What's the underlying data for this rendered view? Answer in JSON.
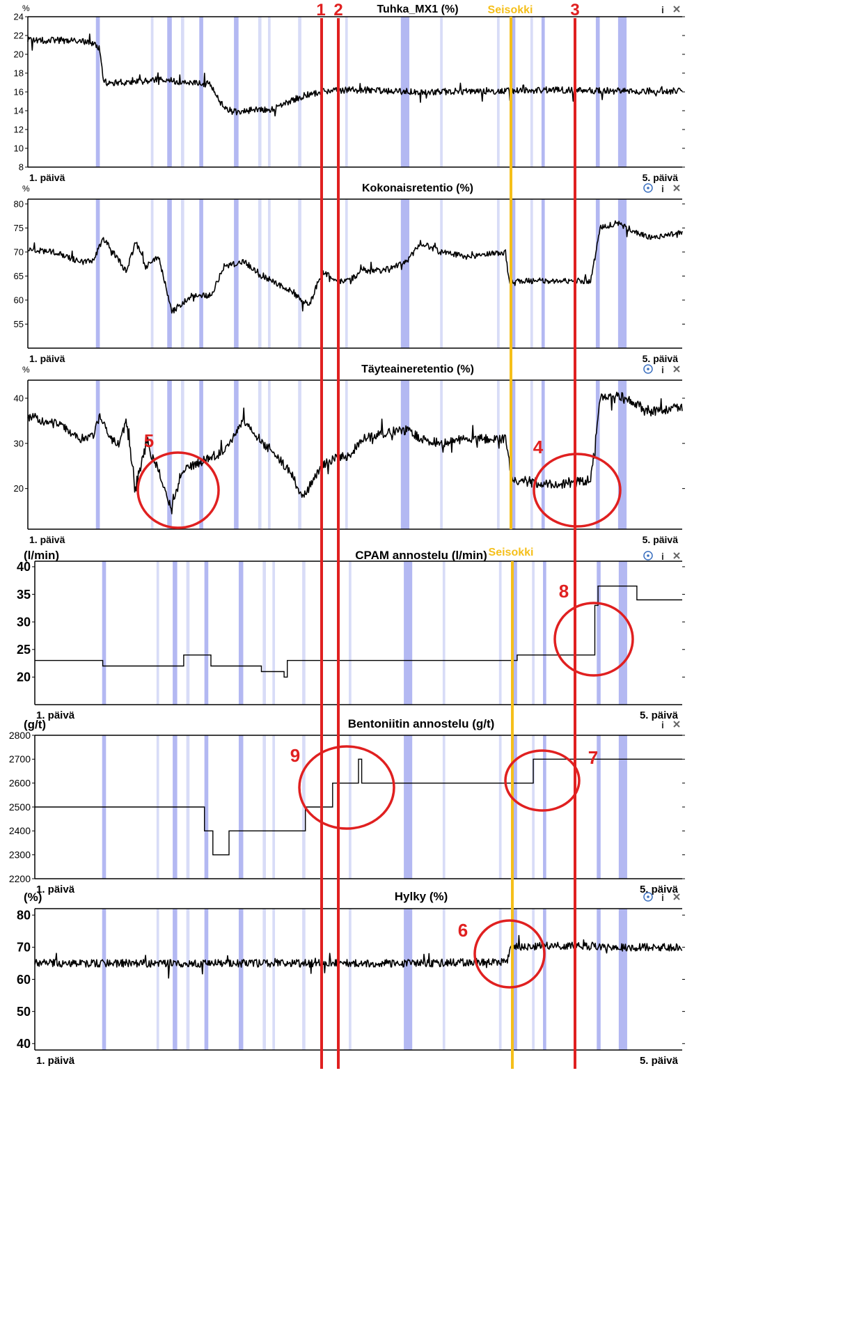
{
  "colors": {
    "band": "#b3b8f2",
    "band_light": "#d8dcf7",
    "trace": "#000000",
    "marker_red": "#e02020",
    "marker_yellow": "#f5bf1a",
    "control_blue": "#3a6fbf"
  },
  "markers": {
    "downtime_label": "Seisokki",
    "event_1": "1",
    "event_2": "2",
    "event_3": "3"
  },
  "chart_data": [
    {
      "type": "line",
      "title": "Tuhka_MX1 (%)",
      "unit_label": "%",
      "ylim": [
        8,
        24
      ],
      "yticks": [
        8,
        10,
        12,
        14,
        16,
        18,
        20,
        22,
        24
      ],
      "x_start_label": "1. päivä",
      "x_end_label": "5. päivä",
      "icons": [
        "info-icon",
        "close-icon"
      ],
      "series": [
        {
          "x": [
            0,
            0.05,
            0.08,
            0.1,
            0.11,
            0.115,
            0.12,
            0.15,
            0.2,
            0.28,
            0.3,
            0.32,
            0.35,
            0.37,
            0.4,
            0.43,
            0.47,
            0.52,
            0.6,
            0.7,
            0.8,
            0.9,
            1
          ],
          "values": [
            21.5,
            21.5,
            21.4,
            21.2,
            20.5,
            17.5,
            17.0,
            17.0,
            17.3,
            16.8,
            14.2,
            13.8,
            14.2,
            14.0,
            15.0,
            15.8,
            16.2,
            16.2,
            16.0,
            16.1,
            16.2,
            16.1,
            16.1
          ],
          "noise": 0.35
        }
      ]
    },
    {
      "type": "line",
      "title": "Kokonaisretentio (%)",
      "unit_label": "%",
      "ylim": [
        50,
        81
      ],
      "yticks": [
        55,
        60,
        65,
        70,
        75,
        80
      ],
      "x_start_label": "1. päivä",
      "x_end_label": "5. päivä",
      "icons": [
        "target-icon",
        "info-icon",
        "close-icon"
      ],
      "series": [
        {
          "x": [
            0,
            0.04,
            0.08,
            0.1,
            0.115,
            0.13,
            0.15,
            0.165,
            0.18,
            0.2,
            0.22,
            0.25,
            0.28,
            0.3,
            0.33,
            0.36,
            0.4,
            0.43,
            0.45,
            0.47,
            0.49,
            0.51,
            0.54,
            0.58,
            0.6,
            0.63,
            0.67,
            0.73,
            0.735,
            0.78,
            0.83,
            0.86,
            0.875,
            0.9,
            0.95,
            1
          ],
          "values": [
            70.5,
            70,
            68,
            68,
            73,
            70,
            66,
            72,
            67,
            69,
            57.5,
            61,
            61,
            67,
            68,
            65,
            62,
            59,
            66,
            64,
            64,
            66,
            66,
            68,
            72,
            70,
            69,
            70,
            64,
            64,
            64,
            64,
            75,
            76,
            73,
            74
          ],
          "noise": 0.6
        }
      ]
    },
    {
      "type": "line",
      "title": "Täyteaineretentio (%)",
      "unit_label": "%",
      "ylim": [
        11,
        44
      ],
      "yticks": [
        20,
        30,
        40
      ],
      "x_start_label": "1. päivä",
      "x_end_label": "5. päivä",
      "icons": [
        "target-icon",
        "info-icon",
        "close-icon"
      ],
      "annotations": [
        "5",
        "4"
      ],
      "series": [
        {
          "x": [
            0,
            0.05,
            0.08,
            0.1,
            0.11,
            0.125,
            0.14,
            0.15,
            0.165,
            0.18,
            0.2,
            0.22,
            0.235,
            0.25,
            0.28,
            0.3,
            0.33,
            0.36,
            0.4,
            0.42,
            0.45,
            0.47,
            0.49,
            0.51,
            0.54,
            0.58,
            0.6,
            0.63,
            0.67,
            0.73,
            0.74,
            0.78,
            0.83,
            0.86,
            0.875,
            0.9,
            0.95,
            1
          ],
          "values": [
            36,
            34,
            31,
            32,
            36,
            31,
            30,
            35,
            20,
            30,
            24,
            15,
            24,
            25,
            27,
            28,
            35,
            30,
            24,
            18,
            25,
            27,
            27,
            31,
            32,
            33,
            31,
            30,
            31,
            31,
            22,
            21,
            21,
            22,
            40,
            41,
            37,
            38
          ],
          "noise": 1.0
        }
      ]
    },
    {
      "type": "line",
      "title": "CPAM annostelu (l/min)",
      "unit_label": "(l/min)",
      "ylim": [
        15,
        41
      ],
      "yticks": [
        20,
        25,
        30,
        35,
        40
      ],
      "x_start_label": "1. päivä",
      "x_end_label": "5. päivä",
      "icons": [
        "target-icon",
        "info-icon",
        "close-icon"
      ],
      "annotations": [
        "8"
      ],
      "series": [
        {
          "step": true,
          "x": [
            0,
            0.105,
            0.23,
            0.272,
            0.35,
            0.385,
            0.39,
            0.745,
            0.865,
            0.87,
            0.93,
            1
          ],
          "values": [
            23,
            22,
            24,
            22,
            21,
            20,
            23,
            24,
            33,
            36.5,
            34,
            34
          ],
          "noise": 0
        }
      ]
    },
    {
      "type": "line",
      "title": "Bentoniitin annostelu (g/t)",
      "unit_label": "(g/t)",
      "ylim": [
        2200,
        2800
      ],
      "yticks": [
        2200,
        2300,
        2400,
        2500,
        2600,
        2700,
        2800
      ],
      "x_start_label": "1. päivä",
      "x_end_label": "5. päivä",
      "icons": [
        "info-icon",
        "close-icon"
      ],
      "annotations": [
        "9",
        "7"
      ],
      "series": [
        {
          "step": true,
          "x": [
            0,
            0.262,
            0.275,
            0.3,
            0.418,
            0.46,
            0.5,
            0.505,
            0.77,
            1
          ],
          "values": [
            2500,
            2400,
            2300,
            2400,
            2500,
            2600,
            2700,
            2600,
            2700,
            2700
          ],
          "noise": 0
        }
      ]
    },
    {
      "type": "line",
      "title": "Hylky (%)",
      "unit_label": "(%)",
      "ylim": [
        38,
        82
      ],
      "yticks": [
        40,
        50,
        60,
        70,
        80
      ],
      "x_start_label": "1. päivä",
      "x_end_label": "5. päivä",
      "icons": [
        "target-icon",
        "info-icon",
        "close-icon"
      ],
      "annotations": [
        "6"
      ],
      "series": [
        {
          "x": [
            0,
            0.2,
            0.4,
            0.6,
            0.73,
            0.735,
            0.8,
            0.9,
            1
          ],
          "values": [
            65,
            65,
            65,
            65,
            65.5,
            70,
            70.5,
            70,
            70
          ],
          "noise": 1.2
        }
      ]
    }
  ]
}
